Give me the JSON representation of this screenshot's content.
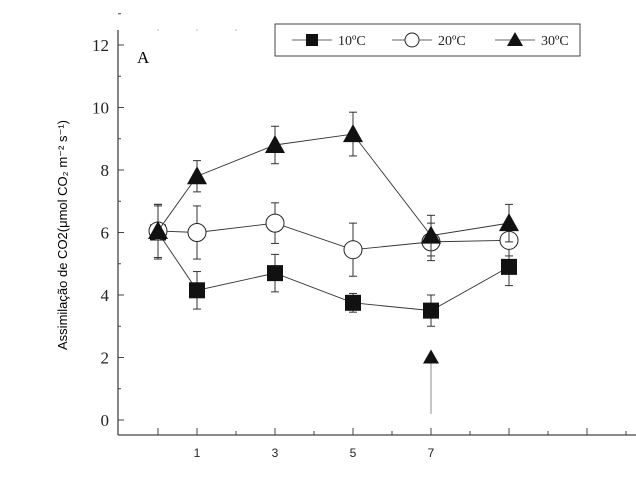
{
  "chart_data": {
    "type": "line",
    "panel_label": "A",
    "ylabel": "Assimilação de CO2(μmol CO₂ m⁻² s⁻¹)",
    "xlabel": "",
    "x": [
      0,
      1,
      3,
      5,
      7,
      9
    ],
    "x_tick_labels": [
      "1",
      "3",
      "5",
      "7"
    ],
    "x_tick_values": [
      1,
      3,
      5,
      7
    ],
    "ylim": [
      0,
      12
    ],
    "y_ticks": [
      0,
      2,
      4,
      6,
      8,
      10,
      12
    ],
    "y_tick_labels": [
      "0",
      "2",
      "4",
      "6",
      "8",
      "10",
      "12"
    ],
    "xlim": [
      -1,
      11
    ],
    "legend_position": "top-right",
    "series": [
      {
        "name": "10ºC",
        "marker": "square-filled",
        "values": [
          6.0,
          4.15,
          4.7,
          3.75,
          3.5,
          4.9
        ],
        "errors": [
          0.85,
          0.6,
          0.6,
          0.3,
          0.5,
          0.6
        ]
      },
      {
        "name": "20ºC",
        "marker": "circle-open",
        "values": [
          6.05,
          6.0,
          6.3,
          5.45,
          5.7,
          5.75
        ],
        "errors": [
          0.85,
          0.85,
          0.65,
          0.85,
          0.6,
          0.5
        ]
      },
      {
        "name": "30ºC",
        "marker": "triangle-filled",
        "values": [
          6.05,
          7.8,
          8.8,
          9.15,
          5.9,
          6.3
        ],
        "errors": [
          0.85,
          0.5,
          0.6,
          0.7,
          0.65,
          0.6
        ]
      }
    ],
    "annotations": [
      {
        "type": "arrow",
        "x": 7,
        "y_from": 0.2,
        "y_to": 2.0
      }
    ]
  }
}
